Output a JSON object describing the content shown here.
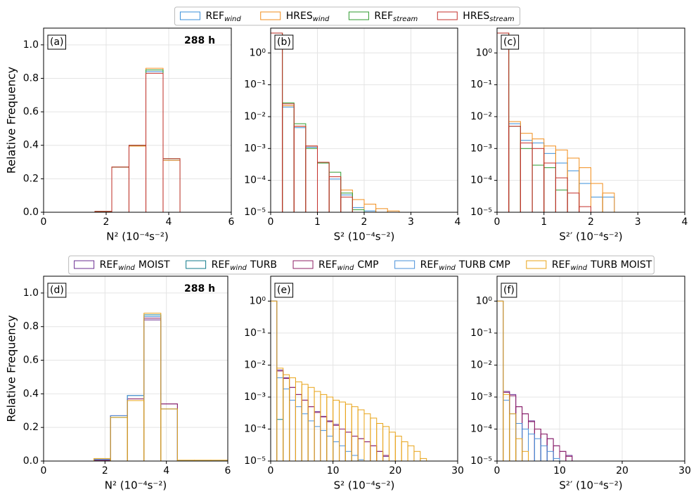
{
  "chart_data": [
    {
      "type": "histogram",
      "panel": "(a)",
      "annotation": "288 h",
      "ylabel": "Relative Frequency",
      "xlabel": "N² (10⁻⁴s⁻²)",
      "bins": [
        1.64,
        2.18,
        2.73,
        3.27,
        3.82,
        4.36
      ],
      "xlim": [
        0,
        6
      ],
      "xticks": [
        0,
        2,
        4,
        6
      ],
      "ylim": [
        0,
        1.1
      ],
      "yticks": [
        {
          "value": 0,
          "label": "0.0"
        },
        0.2,
        0.4,
        0.6,
        0.8,
        {
          "value": 1,
          "label": "1.0"
        }
      ],
      "grid": true,
      "log": false,
      "series": [
        {
          "name": "REF",
          "name_sub": "wind",
          "color": "#3a8fd9",
          "values": [
            0.005,
            0.27,
            0.4,
            0.84,
            0.31
          ]
        },
        {
          "name": "HRES",
          "name_sub": "wind",
          "color": "#f28e1c",
          "values": [
            0.005,
            0.27,
            0.395,
            0.86,
            0.31
          ]
        },
        {
          "name": "REF",
          "name_sub": "stream",
          "color": "#2e9a2e",
          "values": [
            0.005,
            0.27,
            0.4,
            0.85,
            0.32
          ]
        },
        {
          "name": "HRES",
          "name_sub": "stream",
          "color": "#c4302b",
          "values": [
            0.005,
            0.27,
            0.4,
            0.83,
            0.32
          ]
        }
      ]
    },
    {
      "type": "histogram",
      "panel": "(b)",
      "xlabel": "S² (10⁻⁴s⁻²)",
      "bins": [
        0,
        0.25,
        0.5,
        0.75,
        1,
        1.25,
        1.5,
        1.75,
        2,
        2.25,
        2.5,
        2.75
      ],
      "xlim": [
        0,
        4
      ],
      "xticks": [
        0,
        1,
        2,
        3,
        4
      ],
      "ylim": [
        1e-05,
        6
      ],
      "yticks": [
        {
          "value": 1e-05,
          "label": "10⁻⁵"
        },
        {
          "value": 0.0001,
          "label": "10⁻⁴"
        },
        {
          "value": 0.001,
          "label": "10⁻³"
        },
        {
          "value": 0.01,
          "label": "10⁻²"
        },
        {
          "value": 0.1,
          "label": "10⁻¹"
        },
        {
          "value": 1,
          "label": "10⁰"
        }
      ],
      "grid": true,
      "log": true,
      "series": [
        {
          "color": "#3a8fd9",
          "values": [
            4.2,
            0.02,
            0.0045,
            0.0011,
            0.00035,
            0.00011,
            3.5e-05,
            1.4e-05,
            1.1e-05,
            0,
            0
          ]
        },
        {
          "color": "#f28e1c",
          "values": [
            4.2,
            0.022,
            0.005,
            0.0012,
            0.00035,
            0.00013,
            5e-05,
            2.5e-05,
            1.8e-05,
            1.3e-05,
            1.1e-05
          ]
        },
        {
          "color": "#2e9a2e",
          "values": [
            4.2,
            0.027,
            0.006,
            0.001,
            0.00035,
            0.00018,
            4e-05,
            1.2e-05,
            0,
            0,
            0
          ]
        },
        {
          "color": "#c4302b",
          "values": [
            4.2,
            0.025,
            0.005,
            0.0012,
            0.00037,
            0.00013,
            3e-05,
            0,
            0,
            0,
            0
          ]
        }
      ]
    },
    {
      "type": "histogram",
      "panel": "(c)",
      "xlabel": "S²′ (10⁻⁴s⁻²)",
      "bins": [
        0,
        0.25,
        0.5,
        0.75,
        1,
        1.25,
        1.5,
        1.75,
        2,
        2.25,
        2.5
      ],
      "xlim": [
        0,
        4
      ],
      "xticks": [
        0,
        1,
        2,
        3,
        4
      ],
      "ylim": [
        1e-05,
        6
      ],
      "yticks": [
        {
          "value": 1e-05,
          "label": "10⁻⁵"
        },
        {
          "value": 0.0001,
          "label": "10⁻⁴"
        },
        {
          "value": 0.001,
          "label": "10⁻³"
        },
        {
          "value": 0.01,
          "label": "10⁻²"
        },
        {
          "value": 0.1,
          "label": "10⁻¹"
        },
        {
          "value": 1,
          "label": "10⁰"
        }
      ],
      "grid": true,
      "log": true,
      "series": [
        {
          "color": "#3a8fd9",
          "values": [
            4.2,
            0.006,
            0.0018,
            0.0015,
            0.0007,
            0.00035,
            0.0002,
            8e-05,
            3e-05,
            3e-05
          ]
        },
        {
          "color": "#f28e1c",
          "values": [
            4.2,
            0.007,
            0.003,
            0.002,
            0.0012,
            0.0009,
            0.0005,
            0.00025,
            8e-05,
            4e-05
          ]
        },
        {
          "color": "#2e9a2e",
          "values": [
            4.2,
            0.005,
            0.001,
            0.0003,
            0.00025,
            5e-05,
            0,
            0,
            0,
            0
          ]
        },
        {
          "color": "#c4302b",
          "values": [
            4.2,
            0.005,
            0.0015,
            0.001,
            0.00035,
            0.00012,
            4e-05,
            1.5e-05,
            0,
            0
          ]
        }
      ]
    },
    {
      "type": "histogram",
      "panel": "(d)",
      "annotation": "288 h",
      "ylabel": "Relative Frequency",
      "xlabel": "N² (10⁻⁴s⁻²)",
      "bins": [
        1.64,
        2.18,
        2.73,
        3.27,
        3.82,
        4.36,
        4.91,
        5.45,
        6
      ],
      "xlim": [
        0,
        6
      ],
      "xticks": [
        0,
        2,
        4,
        6
      ],
      "ylim": [
        0,
        1.1
      ],
      "yticks": [
        {
          "value": 0,
          "label": "0.0"
        },
        0.2,
        0.4,
        0.6,
        0.8,
        {
          "value": 1,
          "label": "1.0"
        }
      ],
      "grid": true,
      "log": false,
      "series": [
        {
          "name": "REF",
          "name_sub": "wind",
          "name_rest": "MOIST",
          "color": "#6a2c91",
          "values": [
            0.005,
            0.27,
            0.37,
            0.84,
            0.34,
            0.003,
            0.003,
            0.003
          ]
        },
        {
          "name": "REF",
          "name_sub": "wind",
          "name_rest": "TURB",
          "color": "#117a8b",
          "values": [
            0.005,
            0.26,
            0.39,
            0.87,
            0.31,
            0.003,
            0.003,
            0.003
          ]
        },
        {
          "name": "REF",
          "name_sub": "wind",
          "name_rest": "CMP",
          "color": "#8e1f66",
          "values": [
            0.005,
            0.27,
            0.37,
            0.85,
            0.34,
            0.003,
            0.003,
            0.003
          ]
        },
        {
          "name": "REF",
          "name_sub": "wind",
          "name_rest": "TURB CMP",
          "color": "#4a90d9",
          "values": [
            0.01,
            0.27,
            0.39,
            0.86,
            0.31,
            0.003,
            0.003,
            0.003
          ]
        },
        {
          "name": "REF",
          "name_sub": "wind",
          "name_rest": "TURB MOIST",
          "color": "#e8a317",
          "values": [
            0.015,
            0.26,
            0.36,
            0.88,
            0.31,
            0.005,
            0.005,
            0.005
          ]
        }
      ]
    },
    {
      "type": "histogram",
      "panel": "(e)",
      "xlabel": "S² (10⁻⁴s⁻²)",
      "bins": [
        0,
        1,
        2,
        3,
        4,
        5,
        6,
        7,
        8,
        9,
        10,
        11,
        12,
        13,
        14,
        15,
        16,
        17,
        18,
        19,
        20,
        21,
        22,
        23,
        24,
        25
      ],
      "xlim": [
        0,
        30
      ],
      "xticks": [
        0,
        10,
        20,
        30
      ],
      "ylim": [
        1e-05,
        6
      ],
      "yticks": [
        {
          "value": 1e-05,
          "label": "10⁻⁵"
        },
        {
          "value": 0.0001,
          "label": "10⁻⁴"
        },
        {
          "value": 0.001,
          "label": "10⁻³"
        },
        {
          "value": 0.01,
          "label": "10⁻²"
        },
        {
          "value": 0.1,
          "label": "10⁻¹"
        },
        {
          "value": 1,
          "label": "10⁰"
        }
      ],
      "grid": true,
      "log": true,
      "series": [
        {
          "color": "#6a2c91",
          "values": [
            1,
            0.007,
            0.004,
            0.002,
            0.0012,
            0.0008,
            0.0005,
            0.00035,
            0.00025,
            0.00018,
            0.00014,
            0.0001,
            8e-05,
            6e-05,
            5e-05,
            4e-05,
            3e-05,
            2e-05,
            1.4e-05,
            1e-05,
            0,
            0,
            0,
            0,
            0
          ]
        },
        {
          "color": "#117a8b",
          "values": [
            1,
            0.0002,
            1e-05,
            0,
            0,
            0,
            0,
            0,
            0,
            0,
            0,
            0,
            0,
            0,
            0,
            0,
            0,
            0,
            0,
            0,
            0,
            0,
            0,
            0,
            0
          ]
        },
        {
          "color": "#8e1f66",
          "values": [
            1,
            0.0065,
            0.0038,
            0.002,
            0.0012,
            0.0008,
            0.0005,
            0.00033,
            0.00024,
            0.00017,
            0.00013,
            0.0001,
            8e-05,
            6e-05,
            5e-05,
            4e-05,
            3e-05,
            2e-05,
            1.5e-05,
            1e-05,
            0,
            0,
            0,
            0,
            0
          ]
        },
        {
          "color": "#4a90d9",
          "values": [
            1,
            0.004,
            0.0018,
            0.0008,
            0.0005,
            0.0003,
            0.00018,
            0.00012,
            9e-05,
            6e-05,
            4e-05,
            3e-05,
            2e-05,
            1.5e-05,
            1.1e-05,
            0,
            0,
            0,
            0,
            0,
            0,
            0,
            0,
            0,
            0
          ]
        },
        {
          "color": "#e8a317",
          "values": [
            1,
            0.008,
            0.005,
            0.004,
            0.003,
            0.0025,
            0.002,
            0.0015,
            0.0012,
            0.001,
            0.0008,
            0.0007,
            0.0006,
            0.0005,
            0.0004,
            0.0003,
            0.00022,
            0.00015,
            0.00012,
            8e-05,
            6e-05,
            4e-05,
            3e-05,
            2e-05,
            1.2e-05
          ]
        }
      ]
    },
    {
      "type": "histogram",
      "panel": "(f)",
      "xlabel": "S²′ (10⁻⁴s⁻²)",
      "bins": [
        0,
        1,
        2,
        3,
        4,
        5,
        6,
        7,
        8,
        9,
        10,
        11,
        12,
        13,
        14,
        15,
        16
      ],
      "xlim": [
        0,
        30
      ],
      "xticks": [
        0,
        10,
        20,
        30
      ],
      "ylim": [
        1e-05,
        6
      ],
      "yticks": [
        {
          "value": 1e-05,
          "label": "10⁻⁵"
        },
        {
          "value": 0.0001,
          "label": "10⁻⁴"
        },
        {
          "value": 0.001,
          "label": "10⁻³"
        },
        {
          "value": 0.01,
          "label": "10⁻²"
        },
        {
          "value": 0.1,
          "label": "10⁻¹"
        },
        {
          "value": 1,
          "label": "10⁰"
        }
      ],
      "grid": true,
      "log": true,
      "series": [
        {
          "color": "#6a2c91",
          "values": [
            1,
            0.0015,
            0.0012,
            0.0005,
            0.0003,
            0.00018,
            0.0001,
            7e-05,
            5e-05,
            3e-05,
            2e-05,
            1.5e-05,
            1e-05,
            1e-05,
            1e-05,
            0
          ]
        },
        {
          "color": "#117a8b",
          "values": [
            1,
            1e-05,
            0,
            0,
            0,
            0,
            0,
            0,
            0,
            0,
            0,
            0,
            0,
            0,
            0,
            0
          ]
        },
        {
          "color": "#8e1f66",
          "values": [
            1,
            0.0014,
            0.0011,
            0.0005,
            0.0003,
            0.00017,
            0.0001,
            7e-05,
            5e-05,
            3e-05,
            2e-05,
            1.4e-05,
            1e-05,
            1e-05,
            0,
            0
          ]
        },
        {
          "color": "#4a90d9",
          "values": [
            1,
            0.0008,
            0.0003,
            0.00015,
            0.0001,
            7e-05,
            5e-05,
            3e-05,
            2e-05,
            1.2e-05,
            1e-05,
            0,
            0,
            0,
            0,
            0
          ]
        },
        {
          "color": "#e8a317",
          "values": [
            1,
            0.0012,
            0.0003,
            5e-05,
            2e-05,
            1e-05,
            0,
            0,
            0,
            0,
            0,
            0,
            0,
            0,
            0,
            0
          ]
        }
      ]
    }
  ]
}
